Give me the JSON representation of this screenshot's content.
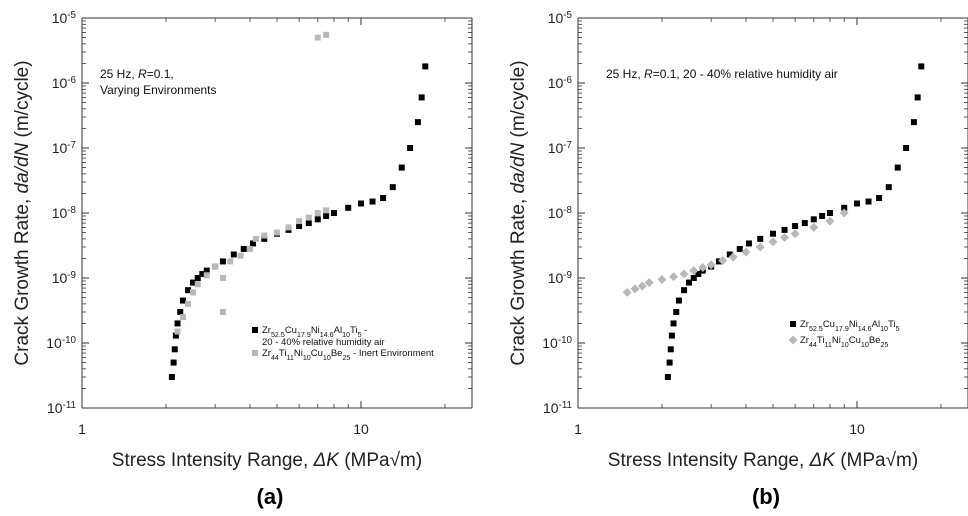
{
  "chart_data": [
    {
      "type": "scatter",
      "panel_label": "(a)",
      "annotation_lines": [
        "25 Hz, R=0.1,",
        "Varying Environments"
      ],
      "xlabel": "Stress Intensity Range, ΔK (MPa√m)",
      "ylabel": "Crack Growth Rate, da/dN (m/cycle)",
      "x_scale": "log",
      "y_scale": "log",
      "xlim": [
        1,
        25
      ],
      "ylim": [
        1e-11,
        1e-05
      ],
      "x_tick_labels": [
        "1",
        "10"
      ],
      "y_tick_labels": [
        "10-11",
        "10-10",
        "10-9",
        "10-8",
        "10-7",
        "10-6",
        "10-5"
      ],
      "legend_position": "bottom-right",
      "series": [
        {
          "name": "Zr52.5Cu17.9Ni14.6Al10Ti5 - 20 - 40% relative humidity air",
          "legend_lines": [
            "Zr52.5Cu17.9Ni14.6Al10Ti5 -",
            "20 - 40% relative humidity air"
          ],
          "marker": "square",
          "color": "#000000",
          "points": [
            [
              2.1,
              3e-11
            ],
            [
              2.13,
              5e-11
            ],
            [
              2.15,
              8e-11
            ],
            [
              2.17,
              1.3e-10
            ],
            [
              2.2,
              2e-10
            ],
            [
              2.25,
              3e-10
            ],
            [
              2.3,
              4.5e-10
            ],
            [
              2.4,
              6.5e-10
            ],
            [
              2.5,
              8.5e-10
            ],
            [
              2.6,
              1e-09
            ],
            [
              2.7,
              1.15e-09
            ],
            [
              2.8,
              1.3e-09
            ],
            [
              3,
              1.5e-09
            ],
            [
              3.2,
              1.8e-09
            ],
            [
              3.5,
              2.3e-09
            ],
            [
              3.8,
              2.8e-09
            ],
            [
              4.1,
              3.4e-09
            ],
            [
              4.5,
              4e-09
            ],
            [
              5,
              4.8e-09
            ],
            [
              5.5,
              5.5e-09
            ],
            [
              6,
              6.3e-09
            ],
            [
              6.5,
              7e-09
            ],
            [
              7,
              8e-09
            ],
            [
              7.5,
              9e-09
            ],
            [
              8,
              1e-08
            ],
            [
              9,
              1.2e-08
            ],
            [
              10,
              1.4e-08
            ],
            [
              11,
              1.5e-08
            ],
            [
              12,
              1.7e-08
            ],
            [
              13,
              2.5e-08
            ],
            [
              14,
              5e-08
            ],
            [
              15,
              1e-07
            ],
            [
              16,
              2.5e-07
            ],
            [
              16.5,
              6e-07
            ],
            [
              17,
              1.8e-06
            ]
          ]
        },
        {
          "name": "Zr44Ti11Ni10Cu10Be25 - Inert Environment",
          "legend_lines": [
            "Zr44Ti11Ni10Cu10Be25 - Inert Environment"
          ],
          "marker": "square",
          "color": "#b8b8b8",
          "points": [
            [
              2.2,
              1.5e-10
            ],
            [
              2.3,
              2.5e-10
            ],
            [
              2.4,
              4e-10
            ],
            [
              2.5,
              6e-10
            ],
            [
              2.6,
              8e-10
            ],
            [
              2.8,
              1.1e-09
            ],
            [
              3,
              1.5e-09
            ],
            [
              3.2,
              1e-09
            ],
            [
              3.2,
              3e-10
            ],
            [
              3.4,
              1.8e-09
            ],
            [
              3.7,
              2.2e-09
            ],
            [
              4,
              2.8e-09
            ],
            [
              4.2,
              4e-09
            ],
            [
              4.5,
              4.5e-09
            ],
            [
              5,
              5e-09
            ],
            [
              5.5,
              6e-09
            ],
            [
              6,
              7.5e-09
            ],
            [
              6.5,
              8.5e-09
            ],
            [
              7,
              1e-08
            ],
            [
              7.5,
              1.1e-08
            ],
            [
              7,
              5e-06
            ],
            [
              7.5,
              5.5e-06
            ]
          ]
        }
      ]
    },
    {
      "type": "scatter",
      "panel_label": "(b)",
      "annotation_lines": [
        "25 Hz, R=0.1, 20 - 40% relative humidity air"
      ],
      "xlabel": "Stress Intensity Range, ΔK (MPa√m)",
      "ylabel": "Crack Growth Rate, da/dN (m/cycle)",
      "x_scale": "log",
      "y_scale": "log",
      "xlim": [
        1,
        25
      ],
      "ylim": [
        1e-11,
        1e-05
      ],
      "x_tick_labels": [
        "1",
        "10"
      ],
      "y_tick_labels": [
        "10-11",
        "10-10",
        "10-9",
        "10-8",
        "10-7",
        "10-6",
        "10-5"
      ],
      "legend_position": "bottom-right",
      "series": [
        {
          "name": "Zr52.5Cu17.9Ni14.6Al10Ti5",
          "legend_lines": [
            "Zr52.5Cu17.9Ni14.6Al10Ti5"
          ],
          "marker": "square",
          "color": "#000000",
          "points": [
            [
              2.1,
              3e-11
            ],
            [
              2.13,
              5e-11
            ],
            [
              2.15,
              8e-11
            ],
            [
              2.17,
              1.3e-10
            ],
            [
              2.2,
              2e-10
            ],
            [
              2.25,
              3e-10
            ],
            [
              2.3,
              4.5e-10
            ],
            [
              2.4,
              6.5e-10
            ],
            [
              2.5,
              8.5e-10
            ],
            [
              2.6,
              1e-09
            ],
            [
              2.7,
              1.15e-09
            ],
            [
              2.8,
              1.3e-09
            ],
            [
              3,
              1.5e-09
            ],
            [
              3.2,
              1.8e-09
            ],
            [
              3.5,
              2.3e-09
            ],
            [
              3.8,
              2.8e-09
            ],
            [
              4.1,
              3.4e-09
            ],
            [
              4.5,
              4e-09
            ],
            [
              5,
              4.8e-09
            ],
            [
              5.5,
              5.5e-09
            ],
            [
              6,
              6.3e-09
            ],
            [
              6.5,
              7e-09
            ],
            [
              7,
              8e-09
            ],
            [
              7.5,
              9e-09
            ],
            [
              8,
              1e-08
            ],
            [
              9,
              1.2e-08
            ],
            [
              10,
              1.4e-08
            ],
            [
              11,
              1.5e-08
            ],
            [
              12,
              1.7e-08
            ],
            [
              13,
              2.5e-08
            ],
            [
              14,
              5e-08
            ],
            [
              15,
              1e-07
            ],
            [
              16,
              2.5e-07
            ],
            [
              16.5,
              6e-07
            ],
            [
              17,
              1.8e-06
            ]
          ]
        },
        {
          "name": "Zr44Ti11Ni10Cu10Be25",
          "legend_lines": [
            "Zr44Ti11Ni10Cu10Be25"
          ],
          "marker": "diamond",
          "color": "#b8b8b8",
          "points": [
            [
              1.5,
              6e-10
            ],
            [
              1.6,
              6.8e-10
            ],
            [
              1.7,
              7.5e-10
            ],
            [
              1.8,
              8.5e-10
            ],
            [
              2,
              9.5e-10
            ],
            [
              2.2,
              1.05e-09
            ],
            [
              2.4,
              1.15e-09
            ],
            [
              2.6,
              1.3e-09
            ],
            [
              2.8,
              1.45e-09
            ],
            [
              3,
              1.6e-09
            ],
            [
              3.3,
              1.85e-09
            ],
            [
              3.6,
              2.1e-09
            ],
            [
              4,
              2.5e-09
            ],
            [
              4.5,
              3e-09
            ],
            [
              5,
              3.6e-09
            ],
            [
              5.5,
              4.2e-09
            ],
            [
              6,
              4.8e-09
            ],
            [
              7,
              6e-09
            ],
            [
              8,
              7.5e-09
            ],
            [
              9,
              1e-08
            ]
          ]
        }
      ]
    }
  ]
}
